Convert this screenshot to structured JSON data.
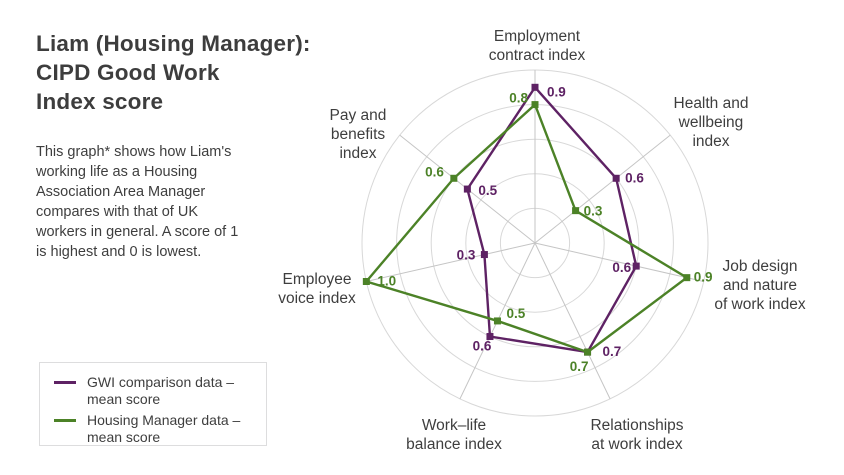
{
  "header": {
    "title_lines": [
      "Liam (Housing Manager):",
      "CIPD Good Work",
      "Index score"
    ],
    "description_lines": [
      "This graph* shows how Liam's",
      "working life as a Housing",
      "Association Area Manager",
      "compares with that of UK",
      "workers in general. A score of 1",
      "is highest and 0 is lowest."
    ]
  },
  "legend": {
    "items": [
      {
        "label": "GWI comparison data – mean score",
        "color": "#5e2264"
      },
      {
        "label": "Housing Manager data – mean score",
        "color": "#4c8227"
      }
    ]
  },
  "colors": {
    "purple": "#5e2264",
    "green": "#4c8227",
    "text": "#3e3e3e",
    "grid_ring": "#d8d8d8",
    "grid_spoke": "#c5c5c5"
  },
  "chart_data": {
    "type": "radar",
    "title": "Liam (Housing Manager): CIPD Good Work Index score",
    "axes": [
      {
        "label": "Employment contract index",
        "label_lines": [
          "Employment",
          "contract index"
        ]
      },
      {
        "label": "Health and wellbeing index",
        "label_lines": [
          "Health and",
          "wellbeing",
          "index"
        ]
      },
      {
        "label": "Job design and nature of work index",
        "label_lines": [
          "Job design",
          "and nature",
          "of work index"
        ]
      },
      {
        "label": "Relationships at work index",
        "label_lines": [
          "Relationships",
          "at work index"
        ]
      },
      {
        "label": "Work–life balance index",
        "label_lines": [
          "Work–life",
          "balance index"
        ]
      },
      {
        "label": "Employee voice index",
        "label_lines": [
          "Employee",
          "voice index"
        ]
      },
      {
        "label": "Pay and benefits index",
        "label_lines": [
          "Pay and",
          "benefits",
          "index"
        ]
      }
    ],
    "series": [
      {
        "name": "GWI comparison data – mean score",
        "color": "#5e2264",
        "values": [
          0.9,
          0.6,
          0.6,
          0.7,
          0.6,
          0.3,
          0.5
        ]
      },
      {
        "name": "Housing Manager data – mean score",
        "color": "#4c8227",
        "values": [
          0.8,
          0.3,
          0.9,
          0.7,
          0.5,
          1.0,
          0.6
        ]
      }
    ],
    "scale": {
      "min": 0,
      "max": 1.0,
      "rings": [
        0.2,
        0.4,
        0.6,
        0.8,
        1.0
      ]
    },
    "grid": true,
    "legend_position": "bottom-left"
  }
}
